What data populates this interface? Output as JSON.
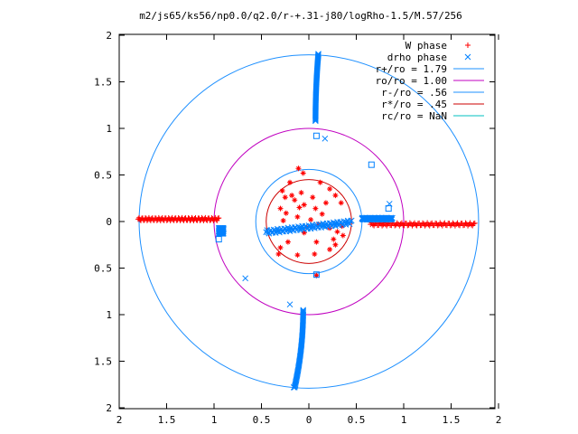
{
  "chart_data": {
    "type": "scatter",
    "title": "m2/js65/ks56/np0.0/q2.0/r-+.31-j80/logRho-1.5/M.57/256",
    "xlim": [
      -2,
      2
    ],
    "ylim": [
      -2,
      2
    ],
    "x_ticks": [
      -2,
      -1.5,
      -1,
      -0.5,
      0,
      0.5,
      1,
      1.5,
      2
    ],
    "y_ticks": [
      -2,
      -1.5,
      -1,
      -0.5,
      0,
      0.5,
      1,
      1.5,
      2
    ],
    "x_tick_labels": [
      "2",
      "1.5",
      "1",
      "0.5",
      "0",
      "0.5",
      "1",
      "1.5",
      "2"
    ],
    "y_tick_labels": [
      "2",
      "1.5",
      "1",
      "0.5",
      "0",
      "0.5",
      "1",
      "1.5",
      "2"
    ],
    "grid": false,
    "legend_position": "top-right",
    "colors": {
      "w_phase": "#ff0000",
      "drho_phase": "#0080ff",
      "r_star_ro": "#1e90ff",
      "ro_ro": "#c000c0",
      "r_minus_ro": "#1e90ff",
      "r_star_i_ro": "#cc0000",
      "rc_ro": "#00c0c0"
    },
    "circles": [
      {
        "name": "r+/ro = 1.79",
        "radius": 1.79,
        "color": "#1e90ff"
      },
      {
        "name": "ro/ro = 1.00",
        "radius": 1.0,
        "color": "#c000c0"
      },
      {
        "name": "r-/ro = .56",
        "radius": 0.56,
        "color": "#1e90ff"
      },
      {
        "name": "r*/ro = .45",
        "radius": 0.45,
        "color": "#cc0000"
      },
      {
        "name": "rc/ro = NaN",
        "radius": null,
        "color": "#00c0c0"
      }
    ],
    "series": [
      {
        "name": "W phase",
        "marker": "plus",
        "color": "#ff0000",
        "bands": [
          {
            "x_from": -1.8,
            "x_to": -0.95,
            "y_center": 0.025,
            "y_amp": 0.015
          },
          {
            "x_from": 0.65,
            "x_to": 1.75,
            "y_center": -0.03,
            "y_amp": 0.015
          }
        ],
        "points": [
          [
            -0.11,
            0.57
          ],
          [
            -0.06,
            0.52
          ],
          [
            -0.2,
            0.42
          ],
          [
            -0.28,
            0.33
          ],
          [
            -0.25,
            0.26
          ],
          [
            -0.18,
            0.28
          ],
          [
            -0.15,
            0.23
          ],
          [
            -0.08,
            0.31
          ],
          [
            -0.05,
            0.18
          ],
          [
            0.12,
            0.42
          ],
          [
            0.22,
            0.35
          ],
          [
            0.28,
            0.28
          ],
          [
            0.34,
            0.2
          ],
          [
            0.18,
            0.2
          ],
          [
            0.07,
            0.14
          ],
          [
            -0.3,
            0.14
          ],
          [
            -0.24,
            0.09
          ],
          [
            -0.12,
            0.05
          ],
          [
            0.02,
            0.02
          ],
          [
            0.1,
            -0.03
          ],
          [
            0.22,
            -0.07
          ],
          [
            0.3,
            -0.11
          ],
          [
            0.36,
            -0.15
          ],
          [
            0.28,
            -0.25
          ],
          [
            0.22,
            -0.3
          ],
          [
            0.08,
            -0.22
          ],
          [
            -0.05,
            -0.12
          ],
          [
            -0.22,
            -0.22
          ],
          [
            -0.3,
            -0.28
          ],
          [
            -0.32,
            -0.35
          ],
          [
            -0.12,
            -0.36
          ],
          [
            0.06,
            -0.35
          ],
          [
            0.26,
            -0.19
          ],
          [
            0.35,
            -0.05
          ],
          [
            -0.27,
            0.01
          ],
          [
            0.08,
            -0.58
          ],
          [
            -0.02,
            -0.06
          ],
          [
            0.14,
            0.08
          ],
          [
            -0.1,
            0.15
          ],
          [
            0.04,
            0.26
          ]
        ]
      },
      {
        "name": "drho phase",
        "marker": "cross",
        "color": "#0080ff",
        "bands": [
          {
            "x_from": -0.95,
            "x_to": -0.9,
            "y_center": -0.1,
            "y_amp": 0.03
          },
          {
            "x_from": -0.45,
            "x_to": 0.45,
            "y_center": -0.06,
            "y_amp": 0.02,
            "slope": 0.12
          },
          {
            "x_from": 0.56,
            "x_to": 0.88,
            "y_center": 0.03,
            "y_amp": 0.01
          }
        ],
        "curves": [
          {
            "x_start": 0.07,
            "x_end": 0.1,
            "y_from": 1.08,
            "y_to": 1.8
          },
          {
            "x_start": -0.06,
            "x_end": -0.15,
            "y_from": -0.95,
            "y_to": -1.78
          }
        ],
        "points": [
          [
            0.08,
            0.92
          ],
          [
            0.17,
            0.89
          ],
          [
            -0.95,
            -0.19
          ],
          [
            -0.67,
            -0.61
          ],
          [
            0.66,
            0.61
          ],
          [
            0.85,
            0.19
          ],
          [
            0.84,
            0.14
          ],
          [
            -0.2,
            -0.89
          ],
          [
            0.08,
            -0.57
          ],
          [
            -0.16,
            -1.78
          ]
        ]
      }
    ]
  }
}
